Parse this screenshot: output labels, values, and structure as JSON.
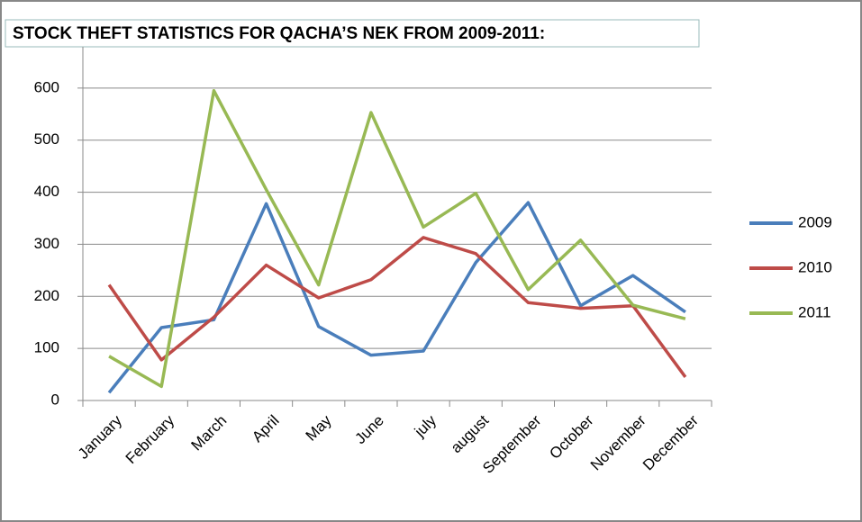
{
  "chart_data": {
    "type": "line",
    "title": "STOCK THEFT STATISTICS FOR QACHA’S NEK FROM 2009-2011:",
    "categories": [
      "January",
      "February",
      "March",
      "April",
      "May",
      "June",
      "july",
      "august",
      "September",
      "October",
      "November",
      "December"
    ],
    "series": [
      {
        "name": "2009",
        "color": "#4a7ebb",
        "values": [
          15,
          140,
          155,
          378,
          142,
          87,
          95,
          265,
          380,
          182,
          240,
          170
        ]
      },
      {
        "name": "2010",
        "color": "#be4b48",
        "values": [
          222,
          78,
          160,
          260,
          197,
          232,
          313,
          282,
          188,
          177,
          182,
          45
        ]
      },
      {
        "name": "2011",
        "color": "#98b954",
        "values": [
          85,
          27,
          595,
          405,
          222,
          553,
          333,
          398,
          213,
          308,
          183,
          157
        ]
      }
    ],
    "ylim": [
      0,
      700
    ],
    "yticks": [
      0,
      100,
      200,
      300,
      400,
      500,
      600
    ],
    "grid": true
  }
}
